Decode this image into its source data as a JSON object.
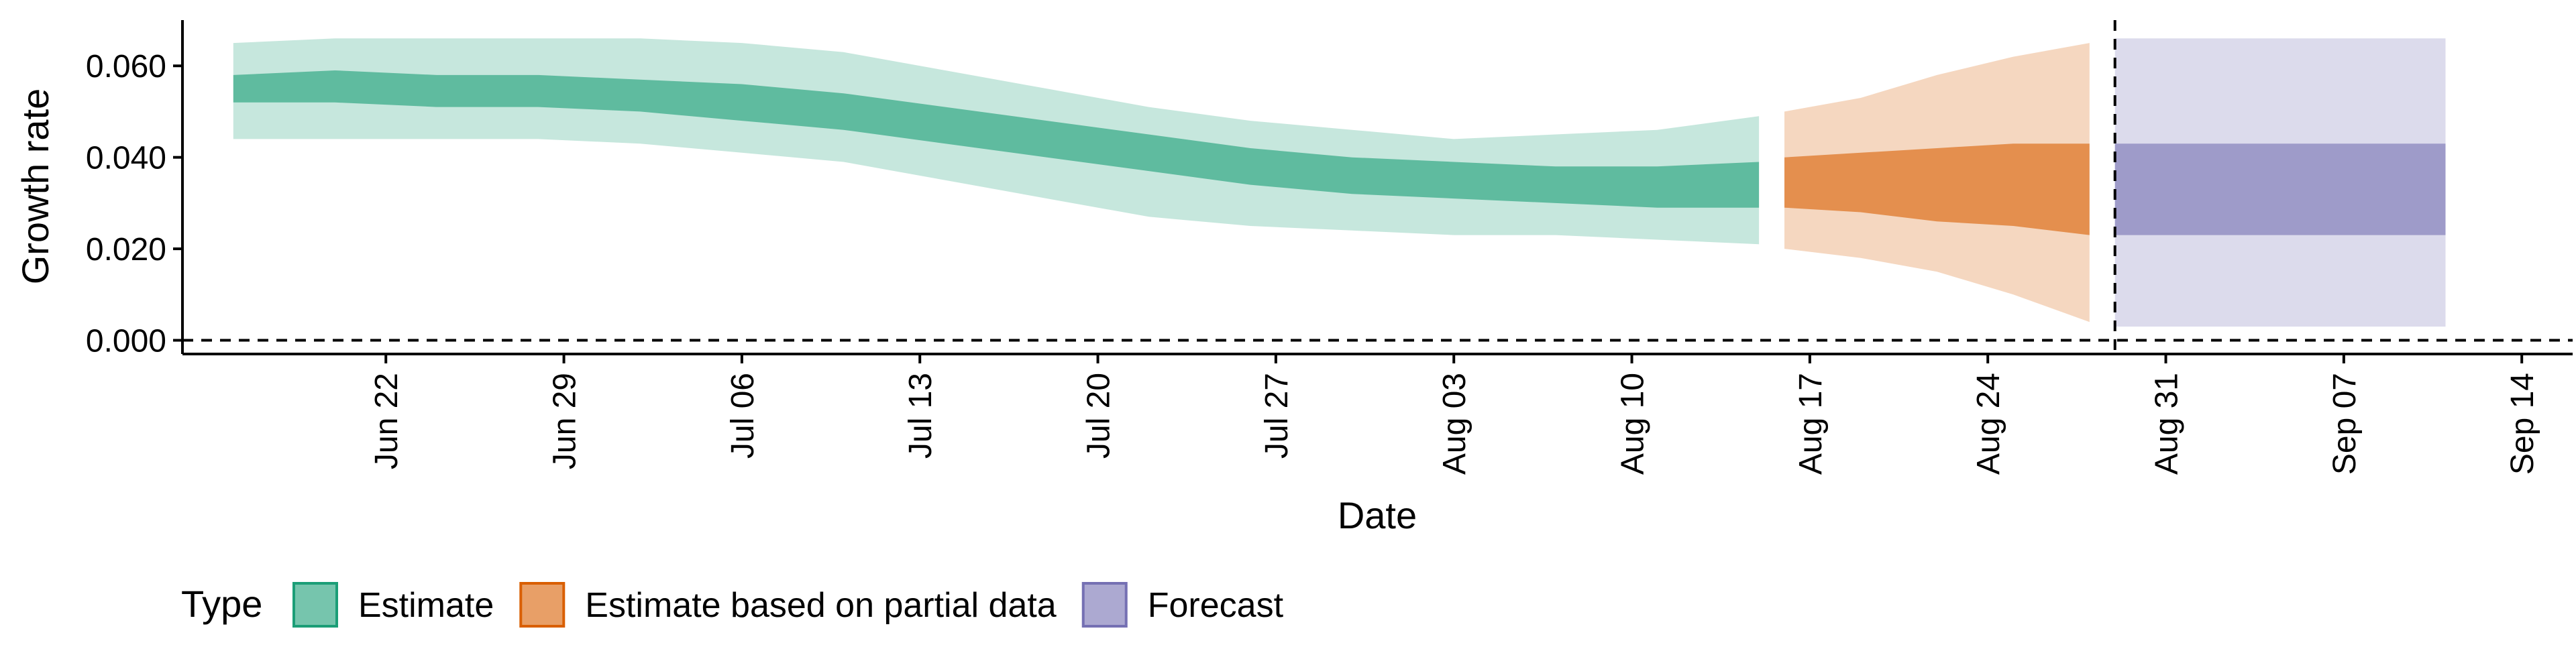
{
  "chart_data": {
    "type": "area",
    "xlabel": "Date",
    "ylabel": "Growth rate",
    "x_range": [
      "2020-06-14",
      "2020-09-16"
    ],
    "ylim": [
      -0.003,
      0.07
    ],
    "y_ticks": [
      0.0,
      0.02,
      0.04,
      0.06
    ],
    "y_tick_labels": [
      "0.000",
      "0.020",
      "0.040",
      "0.060"
    ],
    "x_ticks": [
      "2020-06-22",
      "2020-06-29",
      "2020-07-06",
      "2020-07-13",
      "2020-07-20",
      "2020-07-27",
      "2020-08-03",
      "2020-08-10",
      "2020-08-17",
      "2020-08-24",
      "2020-08-31",
      "2020-09-07",
      "2020-09-14"
    ],
    "x_tick_labels": [
      "Jun 22",
      "Jun 29",
      "Jul 06",
      "Jul 13",
      "Jul 20",
      "Jul 27",
      "Aug 03",
      "Aug 10",
      "Aug 17",
      "Aug 24",
      "Aug 31",
      "Sep 07",
      "Sep 14"
    ],
    "reference_hline": 0.0,
    "reference_vline": "2020-08-29",
    "grid": false,
    "legend": {
      "title": "Type",
      "position": "bottom-left",
      "entries": [
        {
          "label": "Estimate",
          "color": "#1b9e77"
        },
        {
          "label": "Estimate based on partial data",
          "color": "#d95f02"
        },
        {
          "label": "Forecast",
          "color": "#7570b3"
        }
      ]
    },
    "series": [
      {
        "name": "Estimate",
        "color": "#1b9e77",
        "x": [
          "2020-06-16",
          "2020-06-20",
          "2020-06-24",
          "2020-06-28",
          "2020-07-02",
          "2020-07-06",
          "2020-07-10",
          "2020-07-14",
          "2020-07-18",
          "2020-07-22",
          "2020-07-26",
          "2020-07-30",
          "2020-08-03",
          "2020-08-07",
          "2020-08-11",
          "2020-08-15"
        ],
        "inner_low": [
          0.052,
          0.052,
          0.051,
          0.051,
          0.05,
          0.048,
          0.046,
          0.043,
          0.04,
          0.037,
          0.034,
          0.032,
          0.031,
          0.03,
          0.029,
          0.029
        ],
        "inner_high": [
          0.058,
          0.059,
          0.058,
          0.058,
          0.057,
          0.056,
          0.054,
          0.051,
          0.048,
          0.045,
          0.042,
          0.04,
          0.039,
          0.038,
          0.038,
          0.039
        ],
        "outer_low": [
          0.044,
          0.044,
          0.044,
          0.044,
          0.043,
          0.041,
          0.039,
          0.035,
          0.031,
          0.027,
          0.025,
          0.024,
          0.023,
          0.023,
          0.022,
          0.021
        ],
        "outer_high": [
          0.065,
          0.066,
          0.066,
          0.066,
          0.066,
          0.065,
          0.063,
          0.059,
          0.055,
          0.051,
          0.048,
          0.046,
          0.044,
          0.045,
          0.046,
          0.049
        ]
      },
      {
        "name": "Estimate based on partial data",
        "color": "#d95f02",
        "x": [
          "2020-08-16",
          "2020-08-19",
          "2020-08-22",
          "2020-08-25",
          "2020-08-28"
        ],
        "inner_low": [
          0.029,
          0.028,
          0.026,
          0.025,
          0.023
        ],
        "inner_high": [
          0.04,
          0.041,
          0.042,
          0.043,
          0.043
        ],
        "outer_low": [
          0.02,
          0.018,
          0.015,
          0.01,
          0.004
        ],
        "outer_high": [
          0.05,
          0.053,
          0.058,
          0.062,
          0.065
        ]
      },
      {
        "name": "Forecast",
        "color": "#7570b3",
        "x": [
          "2020-08-29",
          "2020-09-11"
        ],
        "inner_low": [
          0.023,
          0.023
        ],
        "inner_high": [
          0.043,
          0.043
        ],
        "outer_low": [
          0.003,
          0.003
        ],
        "outer_high": [
          0.066,
          0.066
        ]
      }
    ]
  }
}
